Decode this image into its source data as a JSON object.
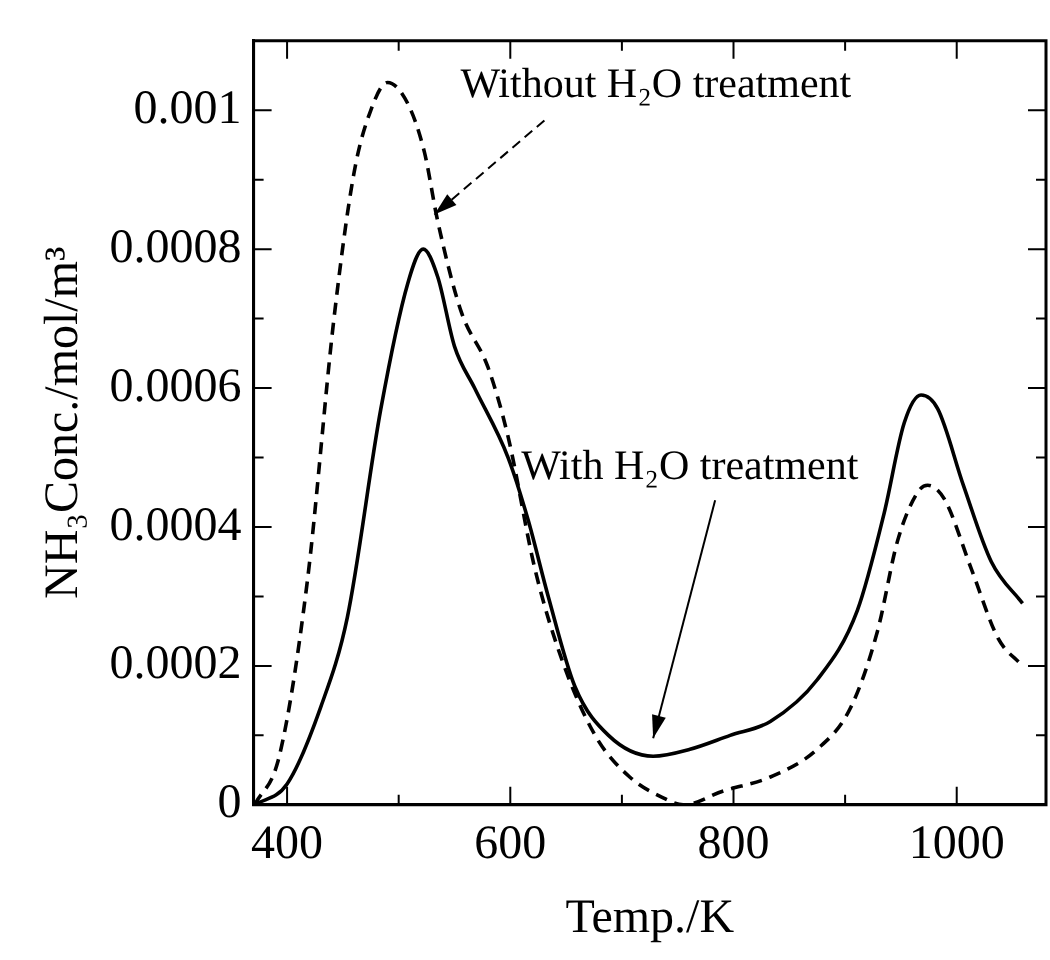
{
  "chart_data": {
    "type": "line",
    "xlabel": "Temp./K",
    "ylabel": "NH₃Conc./mol/m³",
    "xlim": [
      370,
      1080
    ],
    "xticks": [
      400,
      {
        "value": 500,
        "label": null
      },
      600,
      {
        "value": 700,
        "label": null
      },
      800,
      {
        "value": 900,
        "label": null
      },
      1000
    ],
    "ylim": [
      0,
      0.0011
    ],
    "yticks": [
      0,
      {
        "value": 0.0001,
        "label": null
      },
      0.0002,
      {
        "value": 0.0003,
        "label": null
      },
      0.0004,
      {
        "value": 0.0005,
        "label": null
      },
      0.0006,
      {
        "value": 0.0007,
        "label": null
      },
      0.0008,
      {
        "value": 0.0009,
        "label": null
      },
      0.001
    ],
    "grid": false,
    "legend": false,
    "marker": "none",
    "series": [
      {
        "color": "#000000",
        "line_style": "solid",
        "x": [
          371,
          400,
          430,
          454,
          484,
          508,
          522,
          535,
          550,
          568,
          598,
          616,
          634,
          658,
          688,
          728,
          761,
          797,
          833,
          875,
          911,
          935,
          953,
          968,
          983,
          1006,
          1031,
          1059
        ],
        "values": [
          0,
          3e-05,
          0.00014,
          0.00027,
          0.00057,
          0.00075,
          0.0008,
          0.00076,
          0.00066,
          0.0006,
          0.0005,
          0.00041,
          0.0003,
          0.00017,
          0.0001,
          7e-05,
          8e-05,
          0.0001,
          0.00012,
          0.00018,
          0.00028,
          0.00042,
          0.00055,
          0.00059,
          0.00057,
          0.00046,
          0.00035,
          0.00029
        ]
      },
      {
        "color": "#000000",
        "line_style": "dashed",
        "x": [
          371,
          393,
          418,
          442,
          460,
          475,
          490,
          508,
          523,
          535,
          556,
          580,
          598,
          622,
          646,
          676,
          707,
          737,
          755,
          791,
          833,
          875,
          905,
          929,
          947,
          965,
          974,
          989,
          1013,
          1037,
          1059
        ],
        "values": [
          0,
          7e-05,
          0.00032,
          0.0007,
          0.00091,
          0.001,
          0.00104,
          0.00101,
          0.00094,
          0.00084,
          0.00071,
          0.00063,
          0.00053,
          0.00034,
          0.00021,
          0.0001,
          4e-05,
          1e-05,
          0,
          2e-05,
          4e-05,
          8e-05,
          0.00014,
          0.00025,
          0.00038,
          0.00045,
          0.00046,
          0.00044,
          0.00034,
          0.00024,
          0.0002
        ]
      }
    ],
    "annotations": [
      {
        "text": "Without H₂O treatment",
        "x": 532,
        "y": 0.00085
      },
      {
        "text": "With H₂O treatment",
        "x": 728,
        "y": 7e-05
      }
    ]
  }
}
